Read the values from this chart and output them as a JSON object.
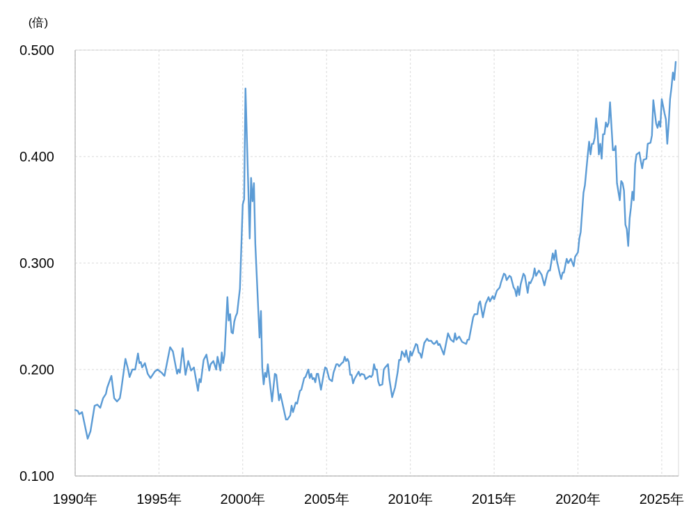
{
  "chart_data": {
    "type": "line",
    "ylabel": "(倍)",
    "x": [
      "1990-01",
      "1990-03",
      "1990-04",
      "1990-06",
      "1990-10",
      "1990-12",
      "1991-03",
      "1991-05",
      "1991-07",
      "1991-09",
      "1991-11",
      "1991-12",
      "1992-03",
      "1992-05",
      "1992-07",
      "1992-09",
      "1992-10",
      "1993-01",
      "1993-03",
      "1993-04",
      "1993-06",
      "1993-08",
      "1993-10",
      "1993-11",
      "1993-12",
      "1994-01",
      "1994-03",
      "1994-05",
      "1994-07",
      "1994-10",
      "1994-12",
      "1995-03",
      "1995-05",
      "1995-09",
      "1995-11",
      "1996-02",
      "1996-03",
      "1996-04",
      "1996-06",
      "1996-08",
      "1996-10",
      "1996-12",
      "1997-02",
      "1997-05",
      "1997-06",
      "1997-07",
      "1997-09",
      "1997-11",
      "1998-01",
      "1998-02",
      "1998-04",
      "1998-06",
      "1998-07",
      "1998-09",
      "1998-10",
      "1998-11",
      "1998-12",
      "1999-02",
      "1999-03",
      "1999-04",
      "1999-05",
      "1999-06",
      "1999-07",
      "1999-08",
      "1999-09",
      "1999-11",
      "2000-01",
      "2000-02",
      "2000-03",
      "2000-06",
      "2000-07",
      "2000-08",
      "2000-09",
      "2000-10",
      "2001-01",
      "2001-02",
      "2001-03",
      "2001-04",
      "2001-05",
      "2001-06",
      "2001-07",
      "2001-10",
      "2001-12",
      "2002-01",
      "2002-03",
      "2002-04",
      "2002-08",
      "2002-09",
      "2002-11",
      "2002-12",
      "2003-01",
      "2003-03",
      "2003-04",
      "2003-06",
      "2003-07",
      "2003-09",
      "2003-10",
      "2003-12",
      "2004-01",
      "2004-02",
      "2004-03",
      "2004-04",
      "2004-05",
      "2004-06",
      "2004-07",
      "2004-09",
      "2004-11",
      "2004-12",
      "2005-01",
      "2005-03",
      "2005-05",
      "2005-06",
      "2005-08",
      "2005-09",
      "2005-10",
      "2005-12",
      "2006-01",
      "2006-02",
      "2006-03",
      "2006-04",
      "2006-05",
      "2006-06",
      "2006-07",
      "2006-08",
      "2006-09",
      "2006-12",
      "2007-01",
      "2007-02",
      "2007-04",
      "2007-05",
      "2007-07",
      "2007-08",
      "2007-09",
      "2007-10",
      "2007-11",
      "2007-12",
      "2008-01",
      "2008-02",
      "2008-03",
      "2008-05",
      "2008-06",
      "2008-07",
      "2008-09",
      "2008-10",
      "2008-12",
      "2009-02",
      "2009-04",
      "2009-05",
      "2009-06",
      "2009-07",
      "2009-08",
      "2009-09",
      "2009-10",
      "2009-11",
      "2009-12",
      "2010-01",
      "2010-02",
      "2010-05",
      "2010-06",
      "2010-07",
      "2010-08",
      "2010-09",
      "2010-11",
      "2011-01",
      "2011-02",
      "2011-04",
      "2011-05",
      "2011-06",
      "2011-07",
      "2011-08",
      "2011-09",
      "2011-10",
      "2012-01",
      "2012-04",
      "2012-06",
      "2012-08",
      "2012-09",
      "2012-10",
      "2012-12",
      "2013-02",
      "2013-05",
      "2013-06",
      "2013-07",
      "2013-10",
      "2013-11",
      "2014-01",
      "2014-02",
      "2014-03",
      "2014-05",
      "2014-07",
      "2014-09",
      "2014-10",
      "2014-12",
      "2015-01",
      "2015-03",
      "2015-05",
      "2015-06",
      "2015-08",
      "2015-09",
      "2015-10",
      "2015-12",
      "2016-01",
      "2016-03",
      "2016-04",
      "2016-05",
      "2016-06",
      "2016-07",
      "2016-08",
      "2016-10",
      "2016-11",
      "2017-01",
      "2017-02",
      "2017-03",
      "2017-05",
      "2017-06",
      "2017-07",
      "2017-09",
      "2017-11",
      "2018-01",
      "2018-03",
      "2018-04",
      "2018-05",
      "2018-07",
      "2018-08",
      "2018-09",
      "2018-10",
      "2018-12",
      "2019-01",
      "2019-02",
      "2019-03",
      "2019-05",
      "2019-06",
      "2019-08",
      "2019-10",
      "2019-11",
      "2020-01",
      "2020-02",
      "2020-03",
      "2020-05",
      "2020-06",
      "2020-08",
      "2020-09",
      "2020-10",
      "2020-11",
      "2020-12",
      "2021-01",
      "2021-02",
      "2021-03",
      "2021-04",
      "2021-05",
      "2021-06",
      "2021-07",
      "2021-08",
      "2021-09",
      "2021-10",
      "2021-11",
      "2021-12",
      "2022-02",
      "2022-03",
      "2022-04",
      "2022-05",
      "2022-07",
      "2022-08",
      "2022-09",
      "2022-10",
      "2022-11",
      "2022-12",
      "2023-01",
      "2023-02",
      "2023-03",
      "2023-04",
      "2023-05",
      "2023-06",
      "2023-07",
      "2023-09",
      "2023-10",
      "2023-11",
      "2023-12",
      "2024-02",
      "2024-03",
      "2024-05",
      "2024-06",
      "2024-07",
      "2024-09",
      "2024-10",
      "2024-11",
      "2024-12",
      "2025-01",
      "2025-03",
      "2025-04",
      "2025-05",
      "2025-06",
      "2025-07",
      "2025-08",
      "2025-09",
      "2025-10",
      "2025-11"
    ],
    "series": [
      {
        "color": "#5b9bd5",
        "values": [
          0.162,
          0.161,
          0.158,
          0.16,
          0.135,
          0.142,
          0.166,
          0.167,
          0.164,
          0.173,
          0.177,
          0.183,
          0.194,
          0.173,
          0.17,
          0.173,
          0.181,
          0.21,
          0.2,
          0.193,
          0.2,
          0.2,
          0.215,
          0.206,
          0.207,
          0.202,
          0.206,
          0.196,
          0.192,
          0.198,
          0.2,
          0.197,
          0.194,
          0.221,
          0.217,
          0.196,
          0.2,
          0.197,
          0.22,
          0.195,
          0.208,
          0.199,
          0.202,
          0.18,
          0.191,
          0.188,
          0.209,
          0.214,
          0.199,
          0.205,
          0.208,
          0.2,
          0.212,
          0.199,
          0.216,
          0.206,
          0.214,
          0.268,
          0.246,
          0.252,
          0.235,
          0.234,
          0.245,
          0.25,
          0.253,
          0.276,
          0.355,
          0.36,
          0.464,
          0.323,
          0.38,
          0.358,
          0.375,
          0.318,
          0.23,
          0.255,
          0.202,
          0.186,
          0.197,
          0.193,
          0.205,
          0.17,
          0.196,
          0.195,
          0.171,
          0.177,
          0.153,
          0.153,
          0.157,
          0.166,
          0.16,
          0.169,
          0.168,
          0.18,
          0.181,
          0.192,
          0.193,
          0.2,
          0.192,
          0.196,
          0.191,
          0.192,
          0.188,
          0.196,
          0.196,
          0.181,
          0.196,
          0.202,
          0.201,
          0.191,
          0.189,
          0.197,
          0.205,
          0.205,
          0.203,
          0.206,
          0.207,
          0.212,
          0.208,
          0.21,
          0.207,
          0.195,
          0.195,
          0.187,
          0.191,
          0.198,
          0.194,
          0.196,
          0.195,
          0.191,
          0.193,
          0.194,
          0.193,
          0.195,
          0.205,
          0.2,
          0.2,
          0.189,
          0.185,
          0.186,
          0.2,
          0.202,
          0.205,
          0.191,
          0.174,
          0.183,
          0.198,
          0.209,
          0.209,
          0.217,
          0.215,
          0.212,
          0.218,
          0.211,
          0.207,
          0.217,
          0.213,
          0.224,
          0.223,
          0.216,
          0.215,
          0.211,
          0.225,
          0.229,
          0.227,
          0.227,
          0.225,
          0.224,
          0.225,
          0.227,
          0.223,
          0.224,
          0.214,
          0.234,
          0.228,
          0.226,
          0.234,
          0.228,
          0.231,
          0.226,
          0.224,
          0.228,
          0.228,
          0.249,
          0.252,
          0.252,
          0.262,
          0.264,
          0.249,
          0.262,
          0.268,
          0.264,
          0.269,
          0.266,
          0.274,
          0.277,
          0.282,
          0.29,
          0.289,
          0.284,
          0.288,
          0.287,
          0.277,
          0.275,
          0.269,
          0.278,
          0.27,
          0.28,
          0.29,
          0.288,
          0.272,
          0.282,
          0.281,
          0.287,
          0.295,
          0.288,
          0.293,
          0.289,
          0.279,
          0.29,
          0.293,
          0.293,
          0.309,
          0.303,
          0.312,
          0.302,
          0.29,
          0.285,
          0.291,
          0.291,
          0.304,
          0.3,
          0.304,
          0.297,
          0.306,
          0.31,
          0.323,
          0.329,
          0.366,
          0.373,
          0.401,
          0.414,
          0.402,
          0.412,
          0.412,
          0.418,
          0.436,
          0.425,
          0.402,
          0.412,
          0.398,
          0.421,
          0.421,
          0.432,
          0.428,
          0.432,
          0.451,
          0.406,
          0.406,
          0.41,
          0.375,
          0.359,
          0.377,
          0.375,
          0.368,
          0.336,
          0.332,
          0.316,
          0.342,
          0.352,
          0.367,
          0.359,
          0.393,
          0.402,
          0.404,
          0.396,
          0.389,
          0.397,
          0.398,
          0.412,
          0.413,
          0.42,
          0.453,
          0.431,
          0.427,
          0.433,
          0.428,
          0.454,
          0.441,
          0.435,
          0.412,
          0.431,
          0.454,
          0.465,
          0.479,
          0.472,
          0.489
        ]
      }
    ],
    "xlim": [
      "1990-01",
      "2026-01"
    ],
    "xticks": [
      {
        "value": "1990-01",
        "label": "1990年"
      },
      {
        "value": "1995-01",
        "label": "1995年"
      },
      {
        "value": "2000-01",
        "label": "2000年"
      },
      {
        "value": "2005-01",
        "label": "2005年"
      },
      {
        "value": "2010-01",
        "label": "2010年"
      },
      {
        "value": "2015-01",
        "label": "2015年"
      },
      {
        "value": "2020-01",
        "label": "2020年"
      },
      {
        "value": "2025-01",
        "label": "2025年"
      }
    ],
    "ylim": [
      0.1,
      0.5
    ],
    "yticks": [
      {
        "value": 0.1,
        "label": "0.100"
      },
      {
        "value": 0.2,
        "label": "0.200"
      },
      {
        "value": 0.3,
        "label": "0.300"
      },
      {
        "value": 0.4,
        "label": "0.400"
      },
      {
        "value": 0.5,
        "label": "0.500"
      }
    ],
    "grid": true
  }
}
